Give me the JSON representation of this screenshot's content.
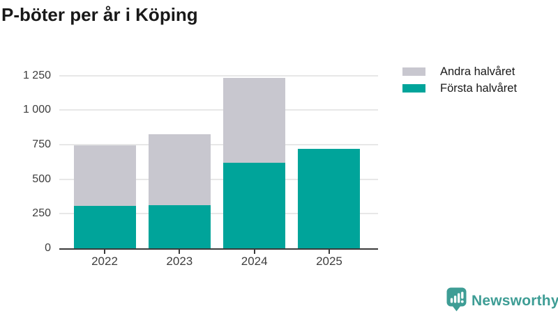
{
  "title": "P-böter per år i Köping",
  "colors": {
    "forsta": "#00a49a",
    "andra": "#c8c7cf",
    "axis": "#3a3a3a",
    "grid": "#e7e7e7",
    "tick_label": "#3d3d3d",
    "title_text": "#191919",
    "logo": "#3e9d95",
    "background": "#ffffff"
  },
  "legend": {
    "items": [
      {
        "label": "Andra halvåret",
        "color_key": "andra"
      },
      {
        "label": "Första halvåret",
        "color_key": "forsta"
      }
    ]
  },
  "chart_data": {
    "type": "bar",
    "stacked": true,
    "title": "P-böter per år i Köping",
    "categories": [
      "2022",
      "2023",
      "2024",
      "2025"
    ],
    "series": [
      {
        "name": "Första halvåret",
        "color_key": "forsta",
        "values": [
          305,
          310,
          620,
          720
        ]
      },
      {
        "name": "Andra halvåret",
        "color_key": "andra",
        "values": [
          440,
          515,
          615,
          0
        ]
      }
    ],
    "totals": [
      745,
      825,
      1235,
      720
    ],
    "xlabel": "",
    "ylabel": "",
    "ylim": [
      0,
      1250
    ],
    "yticks": [
      0,
      250,
      500,
      750,
      1000,
      1250
    ],
    "ytick_labels": [
      "0",
      "250",
      "500",
      "750",
      "1 000",
      "1 250"
    ],
    "grid": "horizontal",
    "legend_position": "top-right"
  },
  "branding": {
    "logo_text": "Newsworthy"
  }
}
